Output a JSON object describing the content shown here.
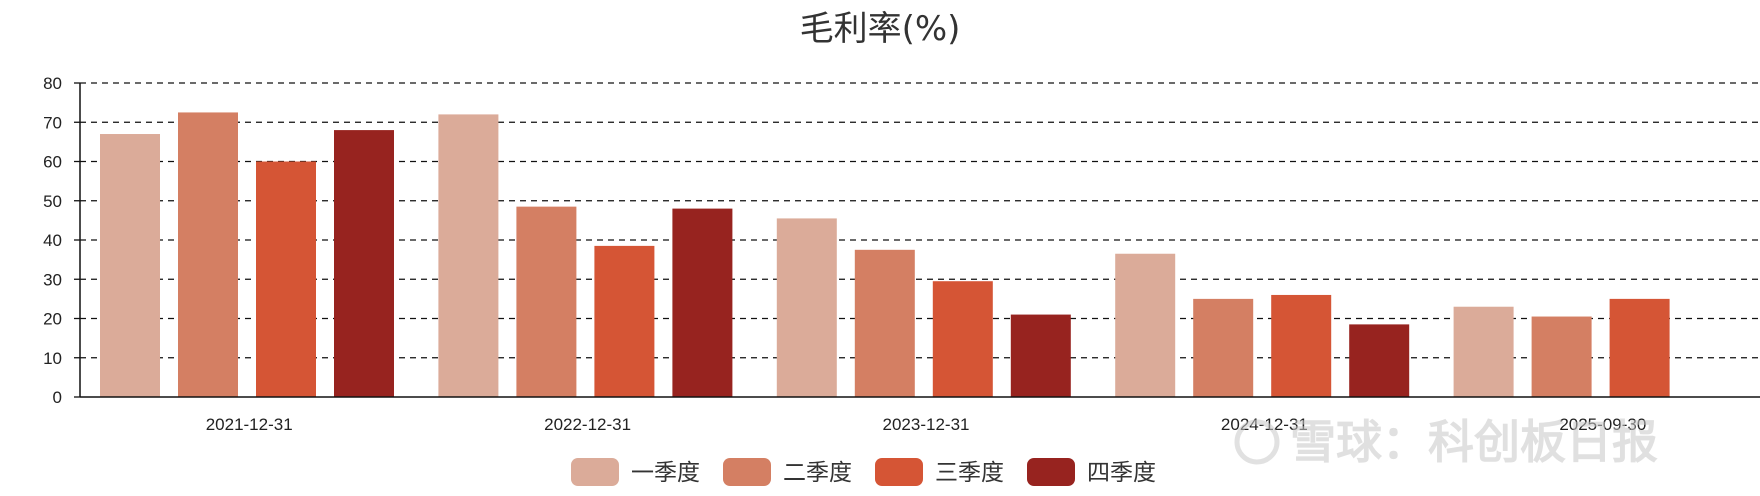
{
  "chart_data": {
    "type": "bar",
    "title": "毛利率(%)",
    "categories": [
      "2021-12-31",
      "2022-12-31",
      "2023-12-31",
      "2024-12-31",
      "2025-09-30"
    ],
    "series": [
      {
        "name": "一季度",
        "color": "#dbab99",
        "values": [
          67,
          72,
          45.5,
          36.5,
          23
        ]
      },
      {
        "name": "二季度",
        "color": "#d47f63",
        "values": [
          72.5,
          48.5,
          37.5,
          25,
          20.5
        ]
      },
      {
        "name": "三季度",
        "color": "#d55535",
        "values": [
          60,
          38.5,
          29.5,
          26,
          25
        ]
      },
      {
        "name": "四季度",
        "color": "#97231f",
        "values": [
          68,
          48,
          21,
          18.5,
          null
        ]
      }
    ],
    "ylim": [
      0,
      80
    ],
    "yticks": [
      0,
      10,
      20,
      30,
      40,
      50,
      60,
      70,
      80
    ],
    "grid": true,
    "legend_position": "bottom-center"
  },
  "watermark": {
    "text": "雪球：科创板日报"
  }
}
